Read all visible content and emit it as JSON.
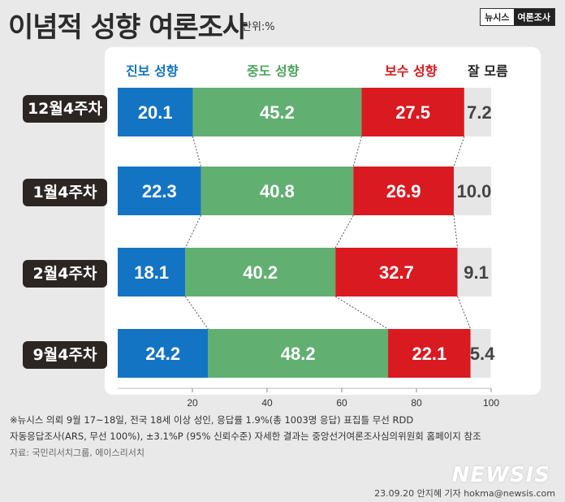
{
  "header": {
    "title": "이념적 성향 여론조사",
    "unit": "단위:%",
    "brand_left": "뉴시스",
    "brand_right": "여론조사"
  },
  "legend": {
    "progressive": "진보 성향",
    "moderate": "중도 성향",
    "conservative": "보수 성향",
    "unknown": "잘 모름"
  },
  "colors": {
    "progressive": "#1474c4",
    "moderate": "#62af72",
    "conservative": "#d91a21",
    "unknown": "#e6e6e6"
  },
  "chart_data": {
    "type": "bar",
    "stacked": true,
    "orientation": "horizontal",
    "categories": [
      "12월4주차",
      "1월4주차",
      "2월4주차",
      "9월4주차"
    ],
    "series": [
      {
        "name": "진보 성향",
        "values": [
          20.1,
          22.3,
          18.1,
          24.2
        ]
      },
      {
        "name": "중도 성향",
        "values": [
          45.2,
          40.8,
          40.2,
          48.2
        ]
      },
      {
        "name": "보수 성향",
        "values": [
          27.5,
          26.9,
          32.7,
          22.1
        ]
      },
      {
        "name": "잘 모름",
        "values": [
          7.2,
          10.0,
          9.1,
          5.4
        ]
      }
    ],
    "value_labels": [
      [
        "20.1",
        "45.2",
        "27.5",
        "7.2"
      ],
      [
        "22.3",
        "40.8",
        "26.9",
        "10.0"
      ],
      [
        "18.1",
        "40.2",
        "32.7",
        "9.1"
      ],
      [
        "24.2",
        "48.2",
        "22.1",
        "5.4"
      ]
    ],
    "xlim": [
      0,
      100
    ],
    "xticks": [
      "20",
      "40",
      "60",
      "80",
      "100"
    ]
  },
  "footer": {
    "note_line1": "※뉴시스 의뢰 9월 17~18일, 전국 18세 이상 성인, 응답률 1.9%(총 1003명 응답) 표집틀 무선 RDD",
    "note_line2": "자동응답조사(ARS, 무선 100%), ±3.1%P (95% 신뢰수준) 자세한 결과는 중앙선거여론조사심의위원회 홈페이지 참조",
    "source": "자료: 국민리서치그룹, 에이스리서치",
    "watermark": "NEWSIS",
    "credit": "23.09.20 안지혜 기자 hokma@newsis.com"
  }
}
